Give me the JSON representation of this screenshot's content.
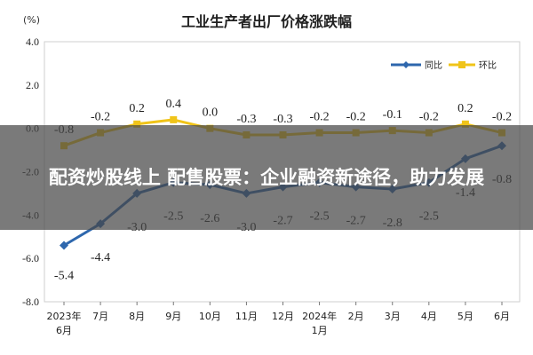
{
  "overlay": {
    "headline": "配资炒股线上 配售股票：企业融资新途径，助力发展"
  },
  "chart_data": {
    "type": "line",
    "title": "工业生产者出厂价格涨跌幅",
    "ylabel": "(%)",
    "ylim": [
      -8.0,
      4.0
    ],
    "yticks": [
      "4.0",
      "2.0",
      "0.0",
      "-2.0",
      "-4.0",
      "-6.0",
      "-8.0"
    ],
    "categories": [
      [
        "2023年",
        "6月"
      ],
      [
        "7月"
      ],
      [
        "8月"
      ],
      [
        "9月"
      ],
      [
        "10月"
      ],
      [
        "11月"
      ],
      [
        "12月"
      ],
      [
        "2024年",
        "1月"
      ],
      [
        "2月"
      ],
      [
        "3月"
      ],
      [
        "4月"
      ],
      [
        "5月"
      ],
      [
        "6月"
      ]
    ],
    "legend_position": "top-right",
    "grid": false,
    "series": [
      {
        "name": "同比",
        "color": "#2e67ad",
        "values": [
          -5.4,
          -4.4,
          -3.0,
          -2.5,
          -2.6,
          -3.0,
          -2.7,
          -2.5,
          -2.7,
          -2.8,
          -2.5,
          -1.4,
          -0.8
        ],
        "labels": [
          "-5.4",
          "-4.4",
          "-3.0",
          "-2.5",
          "-2.6",
          "-3.0",
          "-2.7",
          "-2.5",
          "-2.7",
          "-2.8",
          "-2.5",
          "-1.4",
          "-0.8"
        ]
      },
      {
        "name": "环比",
        "color": "#f0c419",
        "values": [
          -0.8,
          -0.2,
          0.2,
          0.4,
          0.0,
          -0.3,
          -0.3,
          -0.2,
          -0.2,
          -0.1,
          -0.2,
          0.2,
          -0.2
        ],
        "labels": [
          "-0.8",
          "-0.2",
          "0.2",
          "0.4",
          "0.0",
          "-0.3",
          "-0.3",
          "-0.2",
          "-0.2",
          "-0.1",
          "-0.2",
          "0.2",
          "-0.2"
        ]
      }
    ]
  }
}
